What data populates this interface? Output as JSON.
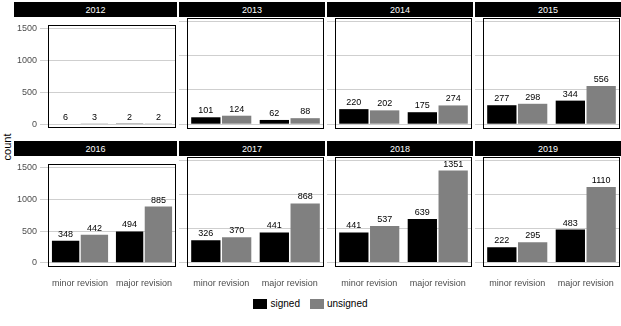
{
  "chart_data": [
    {
      "type": "bar",
      "title": "2012",
      "y_label": "count",
      "legend": "bottom",
      "categories": [
        "minor revision",
        "major revision"
      ],
      "series": [
        {
          "name": "signed",
          "color": "#000000",
          "values": [
            6,
            2
          ]
        },
        {
          "name": "unsigned",
          "color": "#808080",
          "values": [
            3,
            2
          ]
        }
      ],
      "ylim": [
        -70,
        1550
      ],
      "yticks": [
        0,
        500,
        1000,
        1500
      ],
      "grid": true,
      "data_labels": true,
      "tick_labels": "y"
    },
    {
      "type": "bar",
      "title": "2013",
      "categories": [
        "minor revision",
        "major revision"
      ],
      "series": [
        {
          "name": "signed",
          "color": "#000000",
          "values": [
            101,
            62
          ]
        },
        {
          "name": "unsigned",
          "color": "#808080",
          "values": [
            124,
            88
          ]
        }
      ],
      "ylim": [
        -70,
        1550
      ],
      "yticks": [
        0,
        500,
        1000,
        1500
      ],
      "grid": true,
      "data_labels": true,
      "tick_labels": false
    },
    {
      "type": "bar",
      "title": "2014",
      "categories": [
        "minor revision",
        "major revision"
      ],
      "series": [
        {
          "name": "signed",
          "color": "#000000",
          "values": [
            220,
            175
          ]
        },
        {
          "name": "unsigned",
          "color": "#808080",
          "values": [
            202,
            274
          ]
        }
      ],
      "ylim": [
        -70,
        1550
      ],
      "yticks": [
        0,
        500,
        1000,
        1500
      ],
      "grid": true,
      "data_labels": true,
      "tick_labels": false
    },
    {
      "type": "bar",
      "title": "2015",
      "categories": [
        "minor revision",
        "major revision"
      ],
      "series": [
        {
          "name": "signed",
          "color": "#000000",
          "values": [
            277,
            344
          ]
        },
        {
          "name": "unsigned",
          "color": "#808080",
          "values": [
            298,
            556
          ]
        }
      ],
      "ylim": [
        -70,
        1550
      ],
      "yticks": [
        0,
        500,
        1000,
        1500
      ],
      "grid": true,
      "data_labels": true,
      "tick_labels": false
    },
    {
      "type": "bar",
      "title": "2016",
      "categories": [
        "minor revision",
        "major revision"
      ],
      "series": [
        {
          "name": "signed",
          "color": "#000000",
          "values": [
            348,
            494
          ]
        },
        {
          "name": "unsigned",
          "color": "#808080",
          "values": [
            442,
            885
          ]
        }
      ],
      "ylim": [
        -70,
        1550
      ],
      "yticks": [
        0,
        500,
        1000,
        1500
      ],
      "grid": true,
      "data_labels": true,
      "tick_labels": true
    },
    {
      "type": "bar",
      "title": "2017",
      "categories": [
        "minor revision",
        "major revision"
      ],
      "series": [
        {
          "name": "signed",
          "color": "#000000",
          "values": [
            326,
            441
          ]
        },
        {
          "name": "unsigned",
          "color": "#808080",
          "values": [
            370,
            868
          ]
        }
      ],
      "ylim": [
        -70,
        1550
      ],
      "yticks": [
        0,
        500,
        1000,
        1500
      ],
      "grid": true,
      "data_labels": true,
      "tick_labels": "x"
    },
    {
      "type": "bar",
      "title": "2018",
      "categories": [
        "minor revision",
        "major revision"
      ],
      "series": [
        {
          "name": "signed",
          "color": "#000000",
          "values": [
            441,
            639
          ]
        },
        {
          "name": "unsigned",
          "color": "#808080",
          "values": [
            537,
            1351
          ]
        }
      ],
      "ylim": [
        -70,
        1550
      ],
      "yticks": [
        0,
        500,
        1000,
        1500
      ],
      "grid": true,
      "data_labels": true,
      "tick_labels": "x"
    },
    {
      "type": "bar",
      "title": "2019",
      "categories": [
        "minor revision",
        "major revision"
      ],
      "series": [
        {
          "name": "signed",
          "color": "#000000",
          "values": [
            222,
            483
          ]
        },
        {
          "name": "unsigned",
          "color": "#808080",
          "values": [
            295,
            1110
          ]
        }
      ],
      "ylim": [
        -70,
        1550
      ],
      "yticks": [
        0,
        500,
        1000,
        1500
      ],
      "grid": true,
      "data_labels": true,
      "tick_labels": "x"
    }
  ]
}
